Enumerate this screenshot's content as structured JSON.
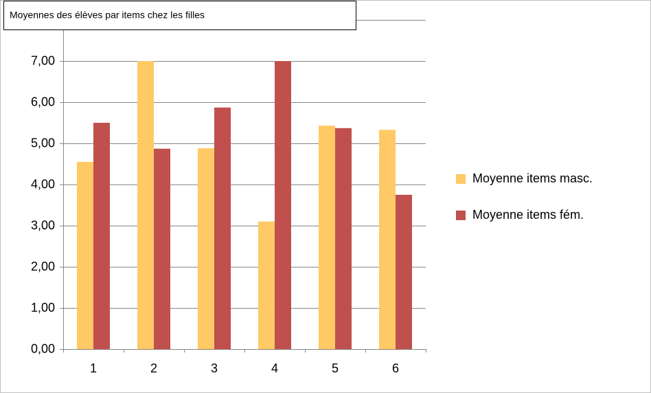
{
  "chart_data": {
    "type": "bar",
    "title": "Moyennes des élèves par items chez les filles",
    "categories": [
      "1",
      "2",
      "3",
      "4",
      "5",
      "6"
    ],
    "series": [
      {
        "name": "Moyenne items masc.",
        "color": "#ffc966",
        "values": [
          4.55,
          7.0,
          4.88,
          3.1,
          5.43,
          5.33
        ]
      },
      {
        "name": "Moyenne items fém.",
        "color": "#c0504d",
        "values": [
          5.5,
          4.87,
          5.87,
          7.0,
          5.37,
          3.75
        ]
      }
    ],
    "ylim": [
      0,
      8
    ],
    "yticks": [
      {
        "value": 0,
        "label": "0,00"
      },
      {
        "value": 1,
        "label": "1,00"
      },
      {
        "value": 2,
        "label": "2,00"
      },
      {
        "value": 3,
        "label": "3,00"
      },
      {
        "value": 4,
        "label": "4,00"
      },
      {
        "value": 5,
        "label": "5,00"
      },
      {
        "value": 6,
        "label": "6,00"
      },
      {
        "value": 7,
        "label": "7,00"
      }
    ],
    "grid": true,
    "legend": "right"
  }
}
